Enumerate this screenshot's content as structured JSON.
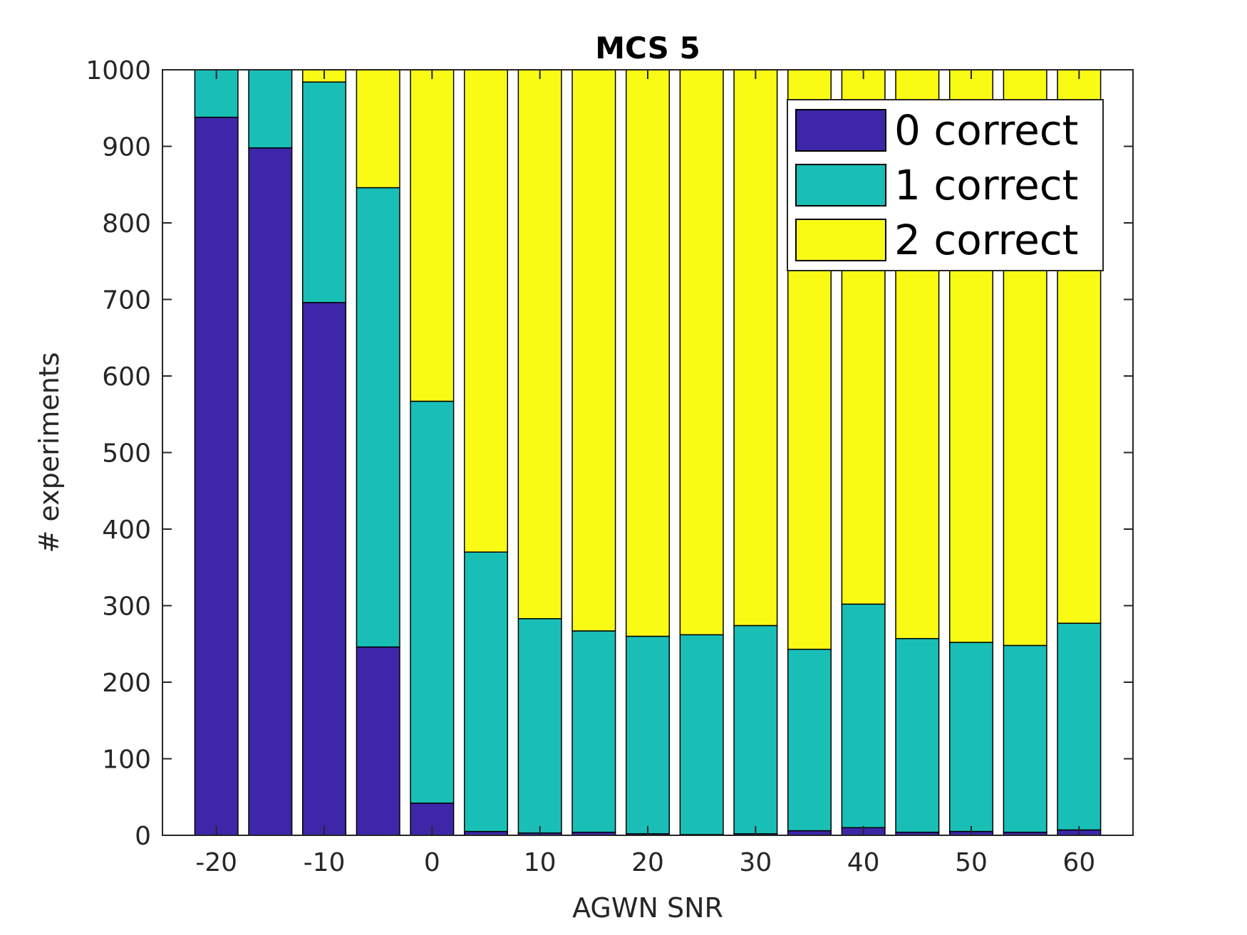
{
  "chart_data": {
    "type": "bar",
    "stacked": true,
    "title": "MCS 5",
    "xlabel": "AGWN SNR",
    "ylabel": "# experiments",
    "x": [
      -20,
      -15,
      -10,
      -5,
      0,
      5,
      10,
      15,
      20,
      25,
      30,
      35,
      40,
      45,
      50,
      55,
      60
    ],
    "xticks": [
      -20,
      -10,
      0,
      10,
      20,
      30,
      40,
      50,
      60
    ],
    "xlim": [
      -25,
      65
    ],
    "ylim": [
      0,
      1000
    ],
    "yticks": [
      0,
      100,
      200,
      300,
      400,
      500,
      600,
      700,
      800,
      900,
      1000
    ],
    "grid": false,
    "legend_position": "top-right",
    "series": [
      {
        "name": "0 correct",
        "color": "#3e26a8",
        "values": [
          938,
          898,
          696,
          246,
          42,
          5,
          3,
          4,
          2,
          1,
          2,
          6,
          10,
          4,
          5,
          4,
          7
        ]
      },
      {
        "name": "1 correct",
        "color": "#19bfb7",
        "values": [
          62,
          102,
          288,
          600,
          525,
          365,
          280,
          263,
          258,
          261,
          272,
          237,
          292,
          253,
          247,
          244,
          270
        ]
      },
      {
        "name": "2 correct",
        "color": "#f9fb15",
        "values": [
          0,
          0,
          16,
          154,
          433,
          630,
          717,
          733,
          740,
          738,
          726,
          757,
          698,
          743,
          748,
          752,
          723
        ]
      }
    ]
  }
}
